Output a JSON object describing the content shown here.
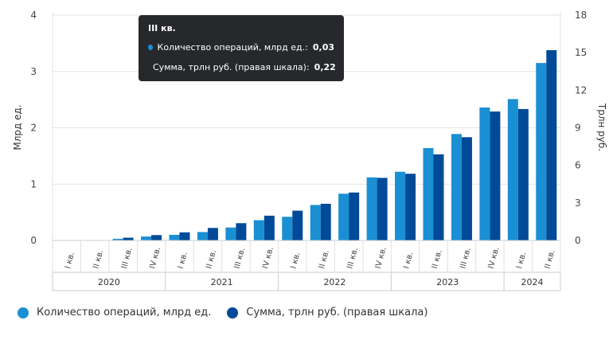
{
  "chart_data": {
    "type": "bar",
    "categories": [
      "I кв.",
      "II кв.",
      "III кв.",
      "IV кв.",
      "I кв.",
      "II кв.",
      "III кв.",
      "IV кв.",
      "I кв.",
      "II кв.",
      "III кв.",
      "IV кв.",
      "I кв.",
      "II кв.",
      "III кв.",
      "IV кв.",
      "I кв.",
      "II кв."
    ],
    "years": [
      {
        "label": "2020",
        "span": 4
      },
      {
        "label": "2021",
        "span": 4
      },
      {
        "label": "2022",
        "span": 4
      },
      {
        "label": "2023",
        "span": 4
      },
      {
        "label": "2024",
        "span": 2
      }
    ],
    "series": [
      {
        "name": "Количество операций, млрд ед.",
        "axis": "left",
        "color": "#1a8fd4",
        "values": [
          0.0,
          0.003,
          0.03,
          0.07,
          0.1,
          0.15,
          0.23,
          0.36,
          0.42,
          0.63,
          0.83,
          1.12,
          1.22,
          1.64,
          1.89,
          2.36,
          2.51,
          3.15
        ]
      },
      {
        "name": "Сумма, трлн руб. (правая шкала)",
        "axis": "right",
        "color": "#004a99",
        "values": [
          0.0,
          0.01,
          0.22,
          0.43,
          0.65,
          1.0,
          1.38,
          1.98,
          2.38,
          2.93,
          3.83,
          5.0,
          5.33,
          6.88,
          8.25,
          10.3,
          10.5,
          15.2
        ]
      }
    ],
    "ylabel_left": "Млрд ед.",
    "ylabel_right": "Трлн руб.",
    "ylim_left": [
      0,
      4
    ],
    "ylim_right": [
      0,
      18
    ],
    "yticks_left": [
      "0",
      "1",
      "2",
      "3",
      "4"
    ],
    "yticks_right": [
      "0",
      "3",
      "6",
      "9",
      "12",
      "15",
      "18"
    ],
    "grid": true,
    "legend": "bottom-left"
  },
  "tooltip": {
    "title": "III кв.",
    "rows": [
      {
        "label": "Количество операций, млрд ед.:",
        "value": "0,03",
        "color": "#1a8fd4"
      },
      {
        "label": "Сумма, трлн руб. (правая шкала):",
        "value": "0,22",
        "color": "#004a99"
      }
    ]
  },
  "legend": {
    "items": [
      {
        "label": "Количество операций, млрд ед.",
        "color": "#1a8fd4"
      },
      {
        "label": "Сумма, трлн руб. (правая шкала)",
        "color": "#004a99"
      }
    ]
  }
}
